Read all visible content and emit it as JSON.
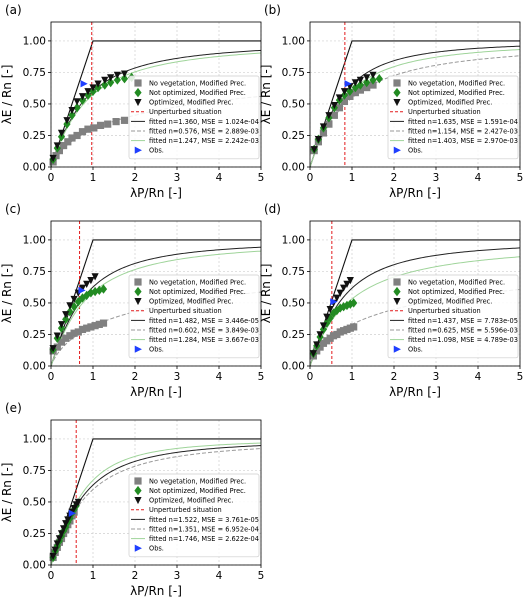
{
  "chart_data": [
    {
      "type": "scatter",
      "panel_label": "(a)",
      "xlabel": "λP/Rn  [-]",
      "ylabel": "λE / Rn [-]",
      "xlim": [
        0,
        5
      ],
      "ylim": [
        0,
        1.15
      ],
      "xticks": [
        "0",
        "1",
        "2",
        "3",
        "4",
        "5"
      ],
      "yticks": [
        "0.00",
        "0.25",
        "0.50",
        "0.75",
        "1.00"
      ],
      "grid": true,
      "unperturbed_x": 0.97,
      "legend_position": "right-middle",
      "series": [
        {
          "name": "No vegetation, Modified Prec.",
          "marker": "square",
          "color": "#808080",
          "x": [
            0.05,
            0.12,
            0.2,
            0.3,
            0.4,
            0.5,
            0.62,
            0.75,
            0.88,
            1.02,
            1.18,
            1.35,
            1.55,
            1.75
          ],
          "y": [
            0.04,
            0.09,
            0.13,
            0.17,
            0.2,
            0.23,
            0.25,
            0.28,
            0.3,
            0.31,
            0.33,
            0.34,
            0.36,
            0.37
          ]
        },
        {
          "name": "Not optimized, Modified Prec.",
          "marker": "diamond",
          "color": "#228B22",
          "x": [
            0.05,
            0.15,
            0.25,
            0.38,
            0.5,
            0.62,
            0.75,
            0.88,
            1.0,
            1.12,
            1.28,
            1.42,
            1.58,
            1.75,
            1.92
          ],
          "y": [
            0.06,
            0.15,
            0.24,
            0.34,
            0.41,
            0.47,
            0.53,
            0.57,
            0.6,
            0.63,
            0.65,
            0.67,
            0.69,
            0.7,
            0.71
          ]
        },
        {
          "name": "Optimized, Modified Prec.",
          "marker": "triangle-down",
          "color": "#111111",
          "x": [
            0.05,
            0.15,
            0.25,
            0.38,
            0.5,
            0.62,
            0.75,
            0.88,
            1.0,
            1.12,
            1.28,
            1.42,
            1.58,
            1.75
          ],
          "y": [
            0.07,
            0.17,
            0.27,
            0.37,
            0.45,
            0.52,
            0.56,
            0.6,
            0.63,
            0.66,
            0.69,
            0.71,
            0.73,
            0.74
          ]
        },
        {
          "name": "Obs.",
          "marker": "triangle-right",
          "color": "#1f3fff",
          "x": [
            0.78
          ],
          "y": [
            0.66
          ]
        }
      ],
      "fits": [
        {
          "name": "Unperturbed situation",
          "style": "dashed-red"
        },
        {
          "name": "fitted n=1.360, MSE = 1.024e-04",
          "n": 1.36,
          "style": "solid-dark"
        },
        {
          "name": "fitted n=0.576, MSE = 2.889e-03",
          "n": 0.576,
          "style": "dashed-gray"
        },
        {
          "name": "fitted n=1.247, MSE = 2.242e-03",
          "n": 1.247,
          "style": "solid-lightgreen"
        }
      ]
    },
    {
      "type": "scatter",
      "panel_label": "(b)",
      "xlabel": "λP/Rn  [-]",
      "ylabel": "λE / Rn [-]",
      "xlim": [
        0,
        5
      ],
      "ylim": [
        0,
        1.15
      ],
      "xticks": [
        "0",
        "1",
        "2",
        "3",
        "4",
        "5"
      ],
      "yticks": [
        "0.00",
        "0.25",
        "0.50",
        "0.75",
        "1.00"
      ],
      "grid": true,
      "unperturbed_x": 0.83,
      "legend_position": "right-middle",
      "series": [
        {
          "name": "No vegetation, Modified Prec.",
          "marker": "square",
          "color": "#808080",
          "x": [
            0.1,
            0.2,
            0.32,
            0.45,
            0.58,
            0.7,
            0.82,
            0.95,
            1.08,
            1.2,
            1.35,
            1.5
          ],
          "y": [
            0.13,
            0.2,
            0.27,
            0.34,
            0.41,
            0.47,
            0.52,
            0.56,
            0.59,
            0.61,
            0.63,
            0.65
          ]
        },
        {
          "name": "Not optimized, Modified Prec.",
          "marker": "diamond",
          "color": "#228B22",
          "x": [
            0.1,
            0.2,
            0.32,
            0.45,
            0.58,
            0.7,
            0.82,
            0.95,
            1.08,
            1.2,
            1.35,
            1.5,
            1.65
          ],
          "y": [
            0.14,
            0.22,
            0.31,
            0.39,
            0.47,
            0.53,
            0.57,
            0.6,
            0.63,
            0.65,
            0.67,
            0.69,
            0.7
          ]
        },
        {
          "name": "Optimized, Modified Prec.",
          "marker": "triangle-down",
          "color": "#111111",
          "x": [
            0.1,
            0.2,
            0.32,
            0.45,
            0.58,
            0.7,
            0.82,
            0.95,
            1.08,
            1.2,
            1.35,
            1.5
          ],
          "y": [
            0.14,
            0.22,
            0.32,
            0.41,
            0.49,
            0.55,
            0.6,
            0.64,
            0.67,
            0.69,
            0.71,
            0.73
          ]
        },
        {
          "name": "Obs.",
          "marker": "triangle-right",
          "color": "#1f3fff",
          "x": [
            0.9
          ],
          "y": [
            0.66
          ]
        }
      ],
      "fits": [
        {
          "name": "Unperturbed situation",
          "style": "dashed-red"
        },
        {
          "name": "fitted n=1.635, MSE = 1.591e-04",
          "n": 1.635,
          "style": "solid-dark"
        },
        {
          "name": "fitted n=1.154, MSE = 2.427e-03",
          "n": 1.154,
          "style": "dashed-gray"
        },
        {
          "name": "fitted n=1.403, MSE = 2.970e-03",
          "n": 1.403,
          "style": "solid-lightgreen"
        }
      ]
    },
    {
      "type": "scatter",
      "panel_label": "(c)",
      "xlabel": "λP/Rn  [-]",
      "ylabel": "λE / Rn [-]",
      "xlim": [
        0,
        5
      ],
      "ylim": [
        0,
        1.15
      ],
      "xticks": [
        "0",
        "1",
        "2",
        "3",
        "4",
        "5"
      ],
      "yticks": [
        "0.00",
        "0.25",
        "0.50",
        "0.75",
        "1.00"
      ],
      "grid": true,
      "unperturbed_x": 0.68,
      "legend_position": "right-middle",
      "series": [
        {
          "name": "No vegetation, Modified Prec.",
          "marker": "square",
          "color": "#808080",
          "x": [
            0.05,
            0.15,
            0.25,
            0.35,
            0.45,
            0.55,
            0.65,
            0.75,
            0.85,
            0.95,
            1.05,
            1.15,
            1.25
          ],
          "y": [
            0.12,
            0.15,
            0.19,
            0.22,
            0.24,
            0.26,
            0.27,
            0.29,
            0.3,
            0.31,
            0.32,
            0.33,
            0.34
          ]
        },
        {
          "name": "Not optimized, Modified Prec.",
          "marker": "diamond",
          "color": "#228B22",
          "x": [
            0.05,
            0.15,
            0.25,
            0.35,
            0.45,
            0.55,
            0.65,
            0.75,
            0.85,
            0.95,
            1.05,
            1.15,
            1.25
          ],
          "y": [
            0.13,
            0.22,
            0.3,
            0.37,
            0.43,
            0.47,
            0.51,
            0.54,
            0.56,
            0.58,
            0.59,
            0.6,
            0.61
          ]
        },
        {
          "name": "Optimized, Modified Prec.",
          "marker": "triangle-down",
          "color": "#111111",
          "x": [
            0.05,
            0.15,
            0.25,
            0.35,
            0.45,
            0.55,
            0.65,
            0.75,
            0.85,
            0.95,
            1.05
          ],
          "y": [
            0.14,
            0.24,
            0.33,
            0.41,
            0.48,
            0.53,
            0.58,
            0.62,
            0.65,
            0.68,
            0.71
          ]
        },
        {
          "name": "Obs.",
          "marker": "triangle-right",
          "color": "#1f3fff",
          "x": [
            0.73
          ],
          "y": [
            0.6
          ]
        }
      ],
      "fits": [
        {
          "name": "Unperturbed situation",
          "style": "dashed-red"
        },
        {
          "name": "fitted n=1.482, MSE = 3.446e-05",
          "n": 1.482,
          "style": "solid-dark"
        },
        {
          "name": "fitted n=0.602, MSE = 3.849e-03",
          "n": 0.602,
          "style": "dashed-gray"
        },
        {
          "name": "fitted n=1.284, MSE = 3.667e-03",
          "n": 1.284,
          "style": "solid-lightgreen"
        }
      ]
    },
    {
      "type": "scatter",
      "panel_label": "(d)",
      "xlabel": "λP/Rn  [-]",
      "ylabel": "λE / Rn [-]",
      "xlim": [
        0,
        5
      ],
      "ylim": [
        0,
        1.15
      ],
      "xticks": [
        "0",
        "1",
        "2",
        "3",
        "4",
        "5"
      ],
      "yticks": [
        "0.00",
        "0.25",
        "0.50",
        "0.75",
        "1.00"
      ],
      "grid": true,
      "unperturbed_x": 0.52,
      "legend_position": "right-middle",
      "series": [
        {
          "name": "No vegetation, Modified Prec.",
          "marker": "square",
          "color": "#808080",
          "x": [
            0.08,
            0.16,
            0.24,
            0.32,
            0.4,
            0.48,
            0.56,
            0.64,
            0.72,
            0.8,
            0.88,
            0.96,
            1.04
          ],
          "y": [
            0.08,
            0.12,
            0.15,
            0.18,
            0.2,
            0.22,
            0.24,
            0.25,
            0.27,
            0.28,
            0.29,
            0.3,
            0.31
          ]
        },
        {
          "name": "Not optimized, Modified Prec.",
          "marker": "diamond",
          "color": "#228B22",
          "x": [
            0.08,
            0.16,
            0.24,
            0.32,
            0.4,
            0.48,
            0.56,
            0.64,
            0.72,
            0.8,
            0.88,
            0.96,
            1.04
          ],
          "y": [
            0.1,
            0.16,
            0.23,
            0.29,
            0.34,
            0.38,
            0.42,
            0.44,
            0.46,
            0.47,
            0.48,
            0.49,
            0.5
          ]
        },
        {
          "name": "Optimized, Modified Prec.",
          "marker": "triangle-down",
          "color": "#111111",
          "x": [
            0.08,
            0.16,
            0.24,
            0.32,
            0.4,
            0.48,
            0.56,
            0.64,
            0.72,
            0.8,
            0.88,
            0.96
          ],
          "y": [
            0.1,
            0.17,
            0.25,
            0.32,
            0.39,
            0.45,
            0.5,
            0.54,
            0.58,
            0.62,
            0.65,
            0.68
          ]
        },
        {
          "name": "Obs.",
          "marker": "triangle-right",
          "color": "#1f3fff",
          "x": [
            0.56
          ],
          "y": [
            0.51
          ]
        }
      ],
      "fits": [
        {
          "name": "Unperturbed situation",
          "style": "dashed-red"
        },
        {
          "name": "fitted n=1.437, MSE = 7.783e-05",
          "n": 1.437,
          "style": "solid-dark"
        },
        {
          "name": "fitted n=0.625, MSE = 5.596e-03",
          "n": 0.625,
          "style": "dashed-gray"
        },
        {
          "name": "fitted n=1.098, MSE = 4.789e-03",
          "n": 1.098,
          "style": "solid-lightgreen"
        }
      ]
    },
    {
      "type": "scatter",
      "panel_label": "(e)",
      "xlabel": "λP/Rn  [-]",
      "ylabel": "λE / Rn [-]",
      "xlim": [
        0,
        5
      ],
      "ylim": [
        0,
        1.15
      ],
      "xticks": [
        "0",
        "1",
        "2",
        "3",
        "4",
        "5"
      ],
      "yticks": [
        "0.00",
        "0.25",
        "0.50",
        "0.75",
        "1.00"
      ],
      "grid": true,
      "unperturbed_x": 0.6,
      "legend_position": "right-middle",
      "series": [
        {
          "name": "No vegetation, Modified Prec.",
          "marker": "square",
          "color": "#808080",
          "x": [
            0.05,
            0.1,
            0.15,
            0.2,
            0.25,
            0.3,
            0.35,
            0.4,
            0.45,
            0.5,
            0.55
          ],
          "y": [
            0.06,
            0.1,
            0.14,
            0.18,
            0.21,
            0.25,
            0.28,
            0.32,
            0.35,
            0.39,
            0.42
          ]
        },
        {
          "name": "Not optimized, Modified Prec.",
          "marker": "diamond",
          "color": "#228B22",
          "x": [
            0.05,
            0.1,
            0.15,
            0.2,
            0.25,
            0.3,
            0.35,
            0.4,
            0.45,
            0.5,
            0.55,
            0.6
          ],
          "y": [
            0.06,
            0.11,
            0.15,
            0.19,
            0.23,
            0.27,
            0.3,
            0.34,
            0.37,
            0.41,
            0.44,
            0.47
          ]
        },
        {
          "name": "Optimized, Modified Prec.",
          "marker": "triangle-down",
          "color": "#111111",
          "x": [
            0.05,
            0.1,
            0.15,
            0.2,
            0.25,
            0.3,
            0.35,
            0.4,
            0.45,
            0.5,
            0.55,
            0.6,
            0.65
          ],
          "y": [
            0.07,
            0.12,
            0.17,
            0.21,
            0.25,
            0.29,
            0.33,
            0.36,
            0.39,
            0.42,
            0.45,
            0.48,
            0.5
          ]
        },
        {
          "name": "Obs.",
          "marker": "triangle-right",
          "color": "#1f3fff",
          "x": [
            0.5
          ],
          "y": [
            0.41
          ]
        }
      ],
      "fits": [
        {
          "name": "Unperturbed situation",
          "style": "dashed-red"
        },
        {
          "name": "fitted n=1.522, MSE = 3.761e-05",
          "n": 1.522,
          "style": "solid-dark"
        },
        {
          "name": "fitted n=1.351, MSE = 6.952e-04",
          "n": 1.351,
          "style": "dashed-gray"
        },
        {
          "name": "fitted n=1.746, MSE = 2.622e-04",
          "n": 1.746,
          "style": "solid-lightgreen"
        }
      ]
    }
  ]
}
